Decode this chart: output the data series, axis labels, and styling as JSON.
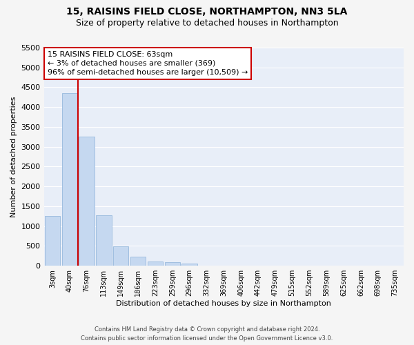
{
  "title": "15, RAISINS FIELD CLOSE, NORTHAMPTON, NN3 5LA",
  "subtitle": "Size of property relative to detached houses in Northampton",
  "xlabel": "Distribution of detached houses by size in Northampton",
  "ylabel": "Number of detached properties",
  "annotation_line1": "15 RAISINS FIELD CLOSE: 63sqm",
  "annotation_line2": "← 3% of detached houses are smaller (369)",
  "annotation_line3": "96% of semi-detached houses are larger (10,509) →",
  "footer_line1": "Contains HM Land Registry data © Crown copyright and database right 2024.",
  "footer_line2": "Contains public sector information licensed under the Open Government Licence v3.0.",
  "bar_labels": [
    "3sqm",
    "40sqm",
    "76sqm",
    "113sqm",
    "149sqm",
    "186sqm",
    "223sqm",
    "259sqm",
    "296sqm",
    "332sqm",
    "369sqm",
    "406sqm",
    "442sqm",
    "479sqm",
    "515sqm",
    "552sqm",
    "589sqm",
    "625sqm",
    "662sqm",
    "698sqm",
    "735sqm"
  ],
  "bar_values": [
    1250,
    4350,
    3250,
    1280,
    490,
    220,
    100,
    80,
    55,
    0,
    0,
    0,
    0,
    0,
    0,
    0,
    0,
    0,
    0,
    0,
    0
  ],
  "bar_color": "#c5d8f0",
  "bar_edge_color": "#8ab0d8",
  "marker_color": "#cc0000",
  "annotation_box_color": "#cc0000",
  "ylim": [
    0,
    5500
  ],
  "yticks": [
    0,
    500,
    1000,
    1500,
    2000,
    2500,
    3000,
    3500,
    4000,
    4500,
    5000,
    5500
  ],
  "bg_color": "#e8eef8",
  "grid_color": "#ffffff",
  "fig_bg_color": "#f5f5f5",
  "title_fontsize": 10,
  "subtitle_fontsize": 9,
  "tick_fontsize": 7,
  "ylabel_fontsize": 8,
  "xlabel_fontsize": 8,
  "annotation_fontsize": 8,
  "footer_fontsize": 6
}
